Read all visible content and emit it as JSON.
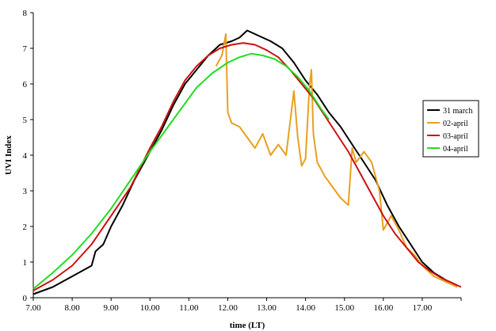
{
  "chart_data": {
    "type": "line",
    "xlabel": "time (LT)",
    "ylabel": "UVI Index",
    "xlim": [
      7.0,
      18.0
    ],
    "ylim": [
      0,
      8
    ],
    "x_ticks": [
      "7.00",
      "8.00",
      "9.00",
      "10.00",
      "11.00",
      "12.00",
      "13.00",
      "14.00",
      "15.00",
      "16.00",
      "17.00"
    ],
    "y_ticks": [
      "0",
      "1",
      "2",
      "3",
      "4",
      "5",
      "6",
      "7",
      "8"
    ],
    "grid": false,
    "legend_position": "right",
    "series": [
      {
        "name": "31 march",
        "color": "#000000",
        "x": [
          7.0,
          7.5,
          8.0,
          8.5,
          8.6,
          8.8,
          9.0,
          9.3,
          9.6,
          10.0,
          10.3,
          10.6,
          10.9,
          11.2,
          11.5,
          11.8,
          12.1,
          12.3,
          12.5,
          12.7,
          12.9,
          13.1,
          13.4,
          13.7,
          14.0,
          14.3,
          14.6,
          14.9,
          15.2,
          15.5,
          15.8,
          16.1,
          16.4,
          16.7,
          17.0,
          17.3,
          17.6,
          17.9
        ],
        "y": [
          0.1,
          0.3,
          0.6,
          0.9,
          1.3,
          1.5,
          2.0,
          2.6,
          3.3,
          4.1,
          4.7,
          5.4,
          6.0,
          6.4,
          6.8,
          7.1,
          7.2,
          7.3,
          7.5,
          7.4,
          7.3,
          7.2,
          7.0,
          6.6,
          6.1,
          5.7,
          5.2,
          4.8,
          4.3,
          3.8,
          3.3,
          2.6,
          2.0,
          1.5,
          1.0,
          0.7,
          0.5,
          0.35
        ]
      },
      {
        "name": "02-april",
        "color": "#e8a020",
        "x": [
          11.7,
          11.85,
          11.95,
          12.0,
          12.1,
          12.3,
          12.5,
          12.7,
          12.9,
          13.1,
          13.3,
          13.5,
          13.7,
          13.8,
          13.9,
          14.0,
          14.1,
          14.15,
          14.2,
          14.3,
          14.5,
          14.7,
          14.9,
          15.1,
          15.2,
          15.3,
          15.5,
          15.7,
          15.9,
          16.0,
          16.2,
          16.4,
          16.6,
          16.8,
          17.0,
          17.3,
          17.6,
          17.9
        ],
        "y": [
          6.5,
          6.8,
          7.4,
          5.2,
          4.9,
          4.8,
          4.5,
          4.2,
          4.6,
          4.0,
          4.3,
          4.0,
          5.8,
          4.5,
          3.7,
          3.9,
          5.9,
          6.4,
          4.6,
          3.8,
          3.4,
          3.1,
          2.8,
          2.6,
          4.2,
          3.8,
          4.1,
          3.8,
          3.0,
          1.9,
          2.3,
          1.9,
          1.4,
          1.2,
          0.9,
          0.6,
          0.45,
          0.3
        ]
      },
      {
        "name": "03-april",
        "color": "#cc1111",
        "x": [
          7.0,
          7.5,
          8.0,
          8.5,
          9.0,
          9.5,
          10.0,
          10.3,
          10.6,
          10.9,
          11.2,
          11.5,
          11.8,
          12.1,
          12.4,
          12.7,
          13.0,
          13.3,
          13.6,
          13.9,
          14.2,
          14.5,
          14.8,
          15.1,
          15.4,
          15.7,
          16.0,
          16.3,
          16.6,
          16.9,
          17.2,
          17.5,
          17.8,
          18.0
        ],
        "y": [
          0.2,
          0.5,
          0.9,
          1.5,
          2.3,
          3.1,
          4.2,
          4.8,
          5.5,
          6.1,
          6.5,
          6.8,
          7.0,
          7.1,
          7.15,
          7.1,
          6.95,
          6.75,
          6.4,
          6.0,
          5.6,
          5.1,
          4.6,
          4.1,
          3.5,
          2.9,
          2.3,
          1.8,
          1.4,
          1.0,
          0.75,
          0.55,
          0.4,
          0.3
        ]
      },
      {
        "name": "04-april",
        "color": "#22dd22",
        "x": [
          7.0,
          7.5,
          8.0,
          8.5,
          9.0,
          9.5,
          10.0,
          10.4,
          10.8,
          11.2,
          11.6,
          12.0,
          12.3,
          12.6,
          12.9,
          13.2,
          13.5,
          13.8,
          14.1,
          14.4,
          14.6
        ],
        "y": [
          0.25,
          0.7,
          1.2,
          1.8,
          2.5,
          3.3,
          4.1,
          4.7,
          5.3,
          5.9,
          6.3,
          6.6,
          6.75,
          6.85,
          6.8,
          6.7,
          6.5,
          6.2,
          5.8,
          5.3,
          5.0
        ]
      }
    ]
  }
}
